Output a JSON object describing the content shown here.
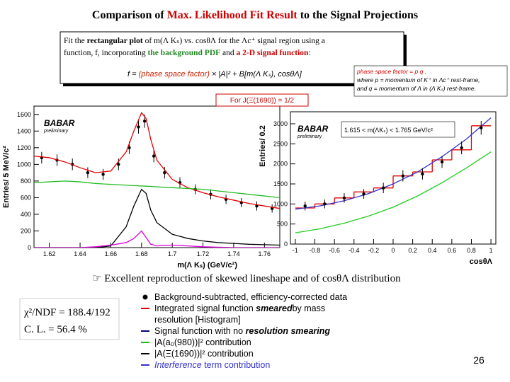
{
  "title": {
    "prefix": "Comparison of",
    "highlight": "Max. Likelihood Fit Result",
    "suffix": "to the Signal Projections"
  },
  "fit_box": {
    "line1": [
      "Fit the ",
      "rectangular plot",
      " of m(Λ Kₛ) vs. cosθΛ for the Λc⁺ signal region using a"
    ],
    "line2": [
      "function, f, incorporating ",
      "the background PDF",
      " and ",
      "a 2-D signal function",
      ":"
    ],
    "formula": [
      "f =",
      "(phase space factor)",
      "× |A|² + B[m(Λ Kₛ), cosθΛ]"
    ]
  },
  "phase_space_note": [
    "phase space factor = p q ,",
    "where p = momentum of K⁺ in Λc⁺ rest-frame,",
    "and q = momentum of Λ in (Λ Kₛ) rest-frame."
  ],
  "spin_label": "For J(Ξ(1690)) = 1/2",
  "summary": "☞ Excellent reproduction of skewed lineshape and of cosθΛ distribution",
  "fit_quality": [
    "χ²/NDF = 188.4/192",
    "C. L. = 56.4 %"
  ],
  "legend": [
    [
      "Background-subtracted, efficiency-corrected data"
    ],
    [
      "Integrated signal function ",
      "smeared",
      "by mass"
    ],
    [
      "resolution  [Histogram]"
    ],
    [
      "Signal function with no ",
      "resolution smearing"
    ],
    [
      "|A(a₀(980))|² contribution"
    ],
    [
      "|A(Ξ(1690))|² contribution"
    ],
    [
      "Interference",
      " term contribution"
    ]
  ],
  "page_number": "26",
  "chart_data": [
    {
      "type": "scatter",
      "xlabel": "m(Λ Kₛ)  (GeV/c²)",
      "ylabel": "Entries/ 5 MeV/c²",
      "watermark": "BABAR",
      "watermark_note": "preliminary",
      "xlim": [
        1.61,
        1.77
      ],
      "ylim": [
        0,
        1700
      ],
      "xticks": [
        1.62,
        1.64,
        1.66,
        1.68,
        1.7,
        1.72,
        1.74,
        1.76
      ],
      "yticks": [
        0,
        200,
        400,
        600,
        800,
        1000,
        1200,
        1400,
        1600
      ],
      "series": [
        {
          "style": "points",
          "color": "#000000",
          "x": [
            1.615,
            1.625,
            1.635,
            1.645,
            1.655,
            1.665,
            1.672,
            1.678,
            1.682,
            1.688,
            1.695,
            1.705,
            1.715,
            1.725,
            1.735,
            1.745,
            1.755,
            1.765
          ],
          "values": [
            1080,
            1050,
            1000,
            900,
            880,
            1000,
            1200,
            1450,
            1520,
            1100,
            900,
            780,
            700,
            640,
            580,
            540,
            500,
            470
          ],
          "errors": [
            70,
            70,
            70,
            65,
            65,
            70,
            75,
            80,
            80,
            75,
            70,
            65,
            60,
            60,
            55,
            55,
            55,
            50
          ]
        },
        {
          "style": "line",
          "color": "#e00000",
          "x": [
            1.61,
            1.62,
            1.63,
            1.64,
            1.65,
            1.66,
            1.67,
            1.675,
            1.68,
            1.683,
            1.686,
            1.69,
            1.7,
            1.71,
            1.72,
            1.73,
            1.74,
            1.75,
            1.76,
            1.77
          ],
          "values": [
            1100,
            1080,
            1030,
            960,
            900,
            920,
            1150,
            1400,
            1620,
            1550,
            1300,
            1050,
            820,
            720,
            660,
            610,
            570,
            530,
            500,
            470
          ]
        },
        {
          "style": "line",
          "color": "#22bb22",
          "x": [
            1.61,
            1.62,
            1.63,
            1.64,
            1.65,
            1.66,
            1.67,
            1.675,
            1.68,
            1.683,
            1.686,
            1.69,
            1.7,
            1.71,
            1.72,
            1.73,
            1.74,
            1.75,
            1.76,
            1.77
          ],
          "values": [
            780,
            790,
            800,
            790,
            770,
            760,
            750,
            745,
            740,
            738,
            735,
            730,
            720,
            710,
            700,
            680,
            660,
            640,
            620,
            600
          ]
        },
        {
          "style": "line",
          "color": "#000000",
          "x": [
            1.61,
            1.62,
            1.63,
            1.64,
            1.65,
            1.66,
            1.67,
            1.675,
            1.68,
            1.683,
            1.686,
            1.69,
            1.7,
            1.71,
            1.72,
            1.73,
            1.74,
            1.75,
            1.76,
            1.77
          ],
          "values": [
            0,
            0,
            0,
            0,
            0,
            20,
            250,
            500,
            700,
            650,
            450,
            300,
            160,
            110,
            80,
            60,
            50,
            40,
            35,
            30
          ]
        },
        {
          "style": "line",
          "color": "#e000e0",
          "x": [
            1.61,
            1.62,
            1.63,
            1.64,
            1.65,
            1.66,
            1.67,
            1.675,
            1.68,
            1.683,
            1.686,
            1.69,
            1.7,
            1.71,
            1.72,
            1.73,
            1.74,
            1.75,
            1.76,
            1.77
          ],
          "values": [
            0,
            0,
            0,
            0,
            10,
            30,
            60,
            110,
            200,
            120,
            40,
            20,
            30,
            20,
            10,
            5,
            0,
            0,
            0,
            0
          ]
        }
      ]
    },
    {
      "type": "scatter",
      "xlabel": "cosθΛ",
      "ylabel": "Entries/ 0.2",
      "watermark": "BABAR",
      "watermark_note": "preliminary",
      "annotation": "1.615 < m(ΛKₛ) < 1.765 GeV/c²",
      "xlim": [
        -1.05,
        1.05
      ],
      "ylim": [
        0,
        3300
      ],
      "xticks": [
        -1,
        -0.8,
        -0.6,
        -0.4,
        -0.2,
        0,
        0.2,
        0.4,
        0.6,
        0.8,
        1
      ],
      "yticks": [
        0,
        500,
        1000,
        1500,
        2000,
        2500,
        3000
      ],
      "series": [
        {
          "style": "step",
          "color": "#e00000",
          "bins": [
            -1,
            -0.8,
            -0.6,
            -0.4,
            -0.2,
            0,
            0.2,
            0.4,
            0.6,
            0.8,
            1
          ],
          "values": [
            900,
            1000,
            1150,
            1300,
            1400,
            1700,
            1800,
            2100,
            2350,
            2950
          ]
        },
        {
          "style": "line",
          "color": "#3333cc",
          "x": [
            -1,
            -0.75,
            -0.5,
            -0.25,
            0,
            0.25,
            0.5,
            0.75,
            1
          ],
          "values": [
            870,
            950,
            1080,
            1260,
            1500,
            1800,
            2180,
            2620,
            3150
          ]
        },
        {
          "style": "line",
          "color": "#22cc22",
          "x": [
            -1,
            -0.75,
            -0.5,
            -0.25,
            0,
            0.25,
            0.5,
            0.75,
            1
          ],
          "values": [
            280,
            380,
            520,
            700,
            920,
            1200,
            1530,
            1900,
            2300
          ]
        },
        {
          "style": "points",
          "color": "#000000",
          "x": [
            -0.9,
            -0.7,
            -0.5,
            -0.3,
            -0.1,
            0.1,
            0.3,
            0.5,
            0.7,
            0.9
          ],
          "values": [
            950,
            1000,
            1150,
            1250,
            1400,
            1700,
            1750,
            2050,
            2400,
            2900
          ],
          "errors": [
            110,
            110,
            120,
            120,
            130,
            140,
            140,
            150,
            160,
            170
          ]
        }
      ]
    }
  ]
}
